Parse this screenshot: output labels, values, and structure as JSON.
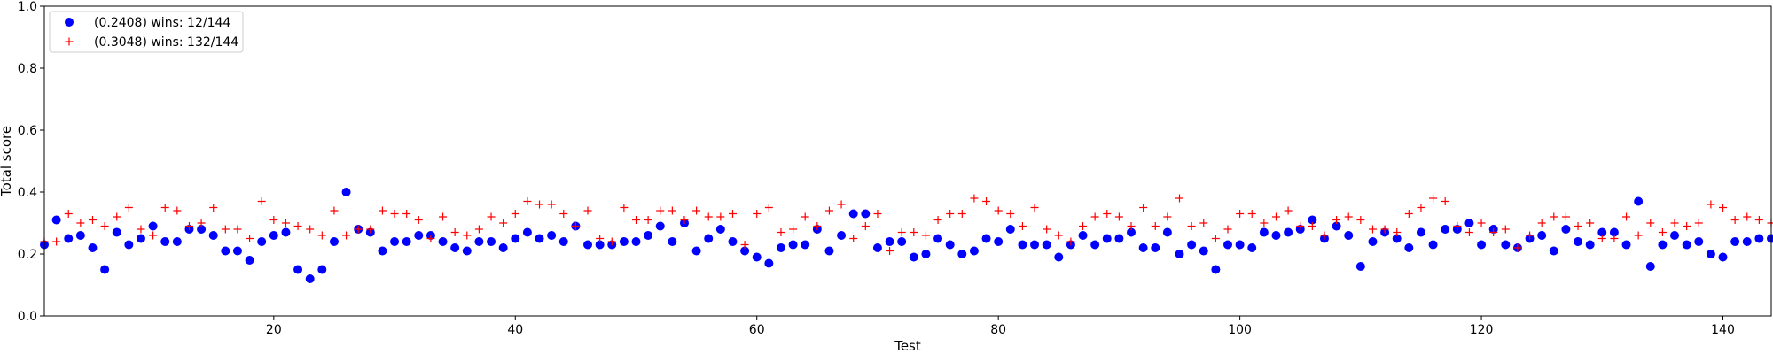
{
  "chart_data": {
    "type": "scatter",
    "xlabel": "Test",
    "ylabel": "Total score",
    "xlim": [
      1,
      144
    ],
    "ylim": [
      0.0,
      1.0
    ],
    "xticks": [
      20,
      40,
      60,
      80,
      100,
      120,
      140
    ],
    "xtick_labels": [
      "20",
      "40",
      "60",
      "80",
      "100",
      "120",
      "140"
    ],
    "yticks": [
      0.0,
      0.2,
      0.4,
      0.6,
      0.8,
      1.0
    ],
    "ytick_labels": [
      "0.0",
      "0.2",
      "0.4",
      "0.6",
      "0.8",
      "1.0"
    ],
    "grid": false,
    "legend_position": "top-left",
    "series": [
      {
        "name": "(0.2408) wins: 12/144",
        "marker": "circle",
        "color": "#0000ff",
        "values": [
          0.23,
          0.31,
          0.25,
          0.26,
          0.22,
          0.15,
          0.27,
          0.23,
          0.25,
          0.29,
          0.24,
          0.24,
          0.28,
          0.28,
          0.26,
          0.21,
          0.21,
          0.18,
          0.24,
          0.26,
          0.27,
          0.15,
          0.12,
          0.15,
          0.24,
          0.4,
          0.28,
          0.27,
          0.21,
          0.24,
          0.24,
          0.26,
          0.26,
          0.24,
          0.22,
          0.21,
          0.24,
          0.24,
          0.22,
          0.25,
          0.27,
          0.25,
          0.26,
          0.24,
          0.29,
          0.23,
          0.23,
          0.23,
          0.24,
          0.24,
          0.26,
          0.29,
          0.24,
          0.3,
          0.21,
          0.25,
          0.28,
          0.24,
          0.21,
          0.19,
          0.17,
          0.22,
          0.23,
          0.23,
          0.28,
          0.21,
          0.26,
          0.33,
          0.33,
          0.22,
          0.24,
          0.24,
          0.19,
          0.2,
          0.25,
          0.23,
          0.2,
          0.21,
          0.25,
          0.24,
          0.28,
          0.23,
          0.23,
          0.23,
          0.19,
          0.23,
          0.26,
          0.23,
          0.25,
          0.25,
          0.27,
          0.22,
          0.22,
          0.27,
          0.2,
          0.23,
          0.21,
          0.15,
          0.23,
          0.23,
          0.22,
          0.27,
          0.26,
          0.27,
          0.28,
          0.31,
          0.25,
          0.29,
          0.26,
          0.16,
          0.24,
          0.27,
          0.25,
          0.22,
          0.27,
          0.23,
          0.28,
          0.28,
          0.3,
          0.23,
          0.28,
          0.23,
          0.22,
          0.25,
          0.26,
          0.21,
          0.28,
          0.24,
          0.23,
          0.27,
          0.27,
          0.23,
          0.37,
          0.16,
          0.23,
          0.26,
          0.23,
          0.24,
          0.2,
          0.19,
          0.24,
          0.24,
          0.25,
          0.25
        ]
      },
      {
        "name": "(0.3048) wins: 132/144",
        "marker": "plus",
        "color": "#ff0000",
        "values": [
          0.24,
          0.24,
          0.33,
          0.3,
          0.31,
          0.29,
          0.32,
          0.35,
          0.28,
          0.26,
          0.35,
          0.34,
          0.29,
          0.3,
          0.35,
          0.28,
          0.28,
          0.25,
          0.37,
          0.31,
          0.3,
          0.29,
          0.28,
          0.26,
          0.34,
          0.26,
          0.28,
          0.28,
          0.34,
          0.33,
          0.33,
          0.31,
          0.25,
          0.32,
          0.27,
          0.26,
          0.28,
          0.32,
          0.3,
          0.33,
          0.37,
          0.36,
          0.36,
          0.33,
          0.29,
          0.34,
          0.25,
          0.24,
          0.35,
          0.31,
          0.31,
          0.34,
          0.34,
          0.31,
          0.34,
          0.32,
          0.32,
          0.33,
          0.23,
          0.33,
          0.35,
          0.27,
          0.28,
          0.32,
          0.29,
          0.34,
          0.36,
          0.25,
          0.29,
          0.33,
          0.21,
          0.27,
          0.27,
          0.26,
          0.31,
          0.33,
          0.33,
          0.38,
          0.37,
          0.34,
          0.33,
          0.29,
          0.35,
          0.28,
          0.26,
          0.24,
          0.29,
          0.32,
          0.33,
          0.32,
          0.29,
          0.35,
          0.29,
          0.32,
          0.38,
          0.29,
          0.3,
          0.25,
          0.28,
          0.33,
          0.33,
          0.3,
          0.32,
          0.34,
          0.29,
          0.29,
          0.26,
          0.31,
          0.32,
          0.31,
          0.28,
          0.28,
          0.27,
          0.33,
          0.35,
          0.38,
          0.37,
          0.29,
          0.27,
          0.3,
          0.27,
          0.28,
          0.22,
          0.26,
          0.3,
          0.32,
          0.32,
          0.29,
          0.3,
          0.25,
          0.25,
          0.32,
          0.26,
          0.3,
          0.27,
          0.3,
          0.29,
          0.3,
          0.36,
          0.35,
          0.31,
          0.32,
          0.31,
          0.3
        ]
      }
    ]
  }
}
